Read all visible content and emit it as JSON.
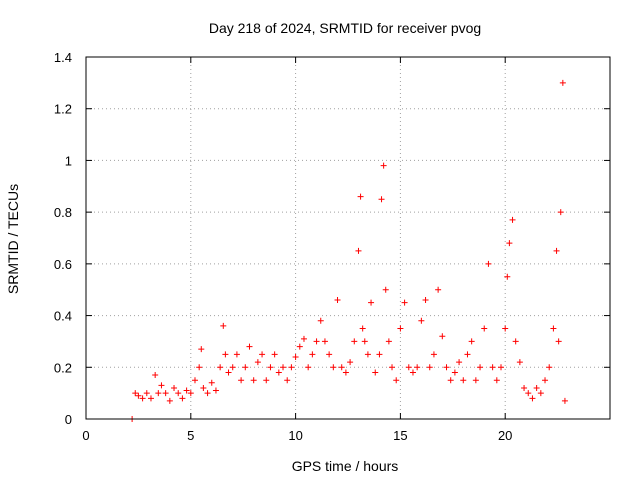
{
  "chart_data": {
    "type": "scatter",
    "title": "Day 218 of 2024, SRMTID for receiver pvog",
    "xlabel": "GPS time / hours",
    "ylabel": "SRMTID / TECUs",
    "xlim": [
      0,
      25
    ],
    "ylim": [
      0,
      1.4
    ],
    "x_ticks": [
      0,
      5,
      10,
      15,
      20
    ],
    "x_tick_labels": [
      "0",
      "5",
      "10",
      "15",
      "20"
    ],
    "y_ticks": [
      0,
      0.2,
      0.4,
      0.6,
      0.8,
      1.0,
      1.2,
      1.4
    ],
    "y_tick_labels": [
      "0",
      "0.2",
      "0.4",
      "0.6",
      "0.8",
      "1",
      "1.2",
      "1.4"
    ],
    "grid": true,
    "marker": "+",
    "color": "#ff0000",
    "series": [
      {
        "name": "SRMTID",
        "x": [
          2.2,
          2.35,
          2.5,
          2.7,
          2.9,
          3.1,
          3.3,
          3.45,
          3.6,
          3.8,
          4.0,
          4.2,
          4.4,
          4.6,
          4.8,
          5.0,
          5.2,
          5.4,
          5.5,
          5.6,
          5.8,
          6.0,
          6.2,
          6.4,
          6.55,
          6.65,
          6.8,
          7.0,
          7.2,
          7.4,
          7.6,
          7.8,
          8.0,
          8.2,
          8.4,
          8.6,
          8.8,
          9.0,
          9.2,
          9.4,
          9.6,
          9.8,
          10.0,
          10.2,
          10.4,
          10.6,
          10.8,
          11.0,
          11.2,
          11.4,
          11.6,
          11.8,
          12.0,
          12.2,
          12.4,
          12.6,
          12.8,
          13.0,
          13.1,
          13.2,
          13.3,
          13.45,
          13.6,
          13.8,
          14.0,
          14.1,
          14.2,
          14.3,
          14.45,
          14.6,
          14.8,
          15.0,
          15.2,
          15.4,
          15.6,
          15.8,
          16.0,
          16.2,
          16.4,
          16.6,
          16.8,
          17.0,
          17.2,
          17.4,
          17.6,
          17.8,
          18.0,
          18.2,
          18.4,
          18.6,
          18.8,
          19.0,
          19.2,
          19.4,
          19.6,
          19.8,
          20.0,
          20.1,
          20.2,
          20.35,
          20.5,
          20.7,
          20.9,
          21.1,
          21.3,
          21.5,
          21.7,
          21.9,
          22.1,
          22.3,
          22.45,
          22.55,
          22.65,
          22.75,
          22.85
        ],
        "y": [
          0.0,
          0.1,
          0.09,
          0.08,
          0.1,
          0.08,
          0.17,
          0.1,
          0.13,
          0.1,
          0.07,
          0.12,
          0.1,
          0.08,
          0.11,
          0.1,
          0.15,
          0.2,
          0.27,
          0.12,
          0.1,
          0.14,
          0.11,
          0.2,
          0.36,
          0.25,
          0.18,
          0.2,
          0.25,
          0.15,
          0.2,
          0.28,
          0.15,
          0.22,
          0.25,
          0.15,
          0.2,
          0.25,
          0.18,
          0.2,
          0.15,
          0.2,
          0.24,
          0.28,
          0.31,
          0.2,
          0.25,
          0.3,
          0.38,
          0.3,
          0.25,
          0.2,
          0.46,
          0.2,
          0.18,
          0.22,
          0.3,
          0.65,
          0.86,
          0.35,
          0.3,
          0.25,
          0.45,
          0.18,
          0.25,
          0.85,
          0.98,
          0.5,
          0.3,
          0.2,
          0.15,
          0.35,
          0.45,
          0.2,
          0.18,
          0.2,
          0.38,
          0.46,
          0.2,
          0.25,
          0.5,
          0.32,
          0.2,
          0.15,
          0.18,
          0.22,
          0.15,
          0.25,
          0.3,
          0.15,
          0.2,
          0.35,
          0.6,
          0.2,
          0.15,
          0.2,
          0.35,
          0.55,
          0.68,
          0.77,
          0.3,
          0.22,
          0.12,
          0.1,
          0.08,
          0.12,
          0.1,
          0.15,
          0.2,
          0.35,
          0.65,
          0.3,
          0.8,
          1.3,
          0.07
        ]
      }
    ]
  }
}
